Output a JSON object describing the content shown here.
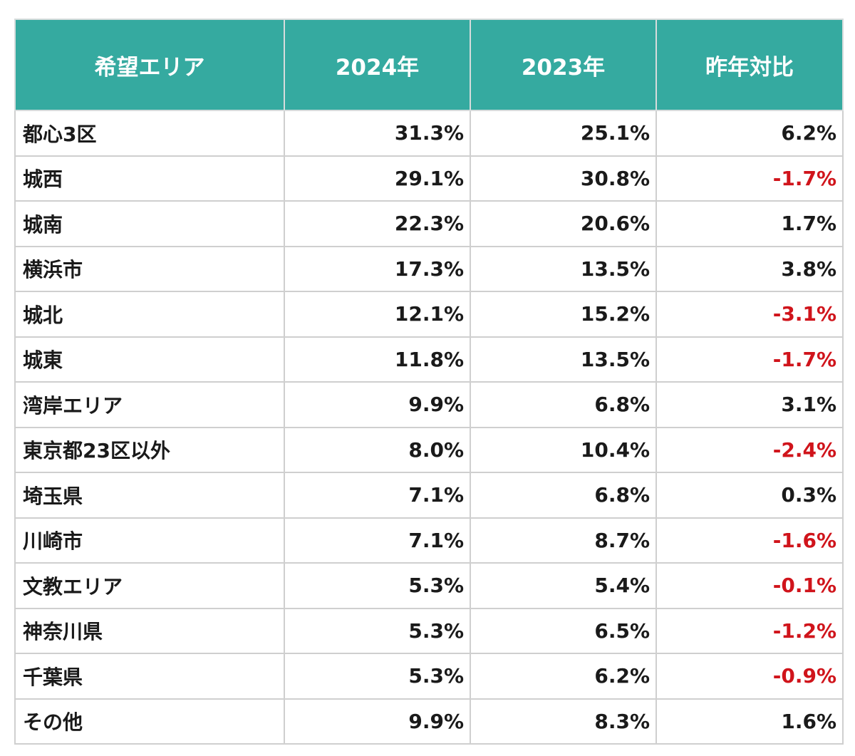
{
  "chart_data": {
    "type": "table",
    "columns": [
      "希望エリア",
      "2024年",
      "2023年",
      "昨年対比"
    ],
    "rows": [
      {
        "area": "都心3区",
        "y2024": "31.3%",
        "y2023": "25.1%",
        "diff": "6.2%",
        "negative": false
      },
      {
        "area": "城西",
        "y2024": "29.1%",
        "y2023": "30.8%",
        "diff": "-1.7%",
        "negative": true
      },
      {
        "area": "城南",
        "y2024": "22.3%",
        "y2023": "20.6%",
        "diff": "1.7%",
        "negative": false
      },
      {
        "area": "横浜市",
        "y2024": "17.3%",
        "y2023": "13.5%",
        "diff": "3.8%",
        "negative": false
      },
      {
        "area": "城北",
        "y2024": "12.1%",
        "y2023": "15.2%",
        "diff": "-3.1%",
        "negative": true
      },
      {
        "area": "城東",
        "y2024": "11.8%",
        "y2023": "13.5%",
        "diff": "-1.7%",
        "negative": true
      },
      {
        "area": "湾岸エリア",
        "y2024": "9.9%",
        "y2023": "6.8%",
        "diff": "3.1%",
        "negative": false
      },
      {
        "area": "東京都23区以外",
        "y2024": "8.0%",
        "y2023": "10.4%",
        "diff": "-2.4%",
        "negative": true
      },
      {
        "area": "埼玉県",
        "y2024": "7.1%",
        "y2023": "6.8%",
        "diff": "0.3%",
        "negative": false
      },
      {
        "area": "川崎市",
        "y2024": "7.1%",
        "y2023": "8.7%",
        "diff": "-1.6%",
        "negative": true
      },
      {
        "area": "文教エリア",
        "y2024": "5.3%",
        "y2023": "5.4%",
        "diff": "-0.1%",
        "negative": true
      },
      {
        "area": "神奈川県",
        "y2024": "5.3%",
        "y2023": "6.5%",
        "diff": "-1.2%",
        "negative": true
      },
      {
        "area": "千葉県",
        "y2024": "5.3%",
        "y2023": "6.2%",
        "diff": "-0.9%",
        "negative": true
      },
      {
        "area": "その他",
        "y2024": "9.9%",
        "y2023": "8.3%",
        "diff": "1.6%",
        "negative": false
      }
    ]
  },
  "colors": {
    "header_bg": "#35aaa0",
    "header_text": "#ffffff",
    "negative_text": "#d0141b",
    "positive_text": "#1a1a1a",
    "grid": "#cfcfcf"
  }
}
